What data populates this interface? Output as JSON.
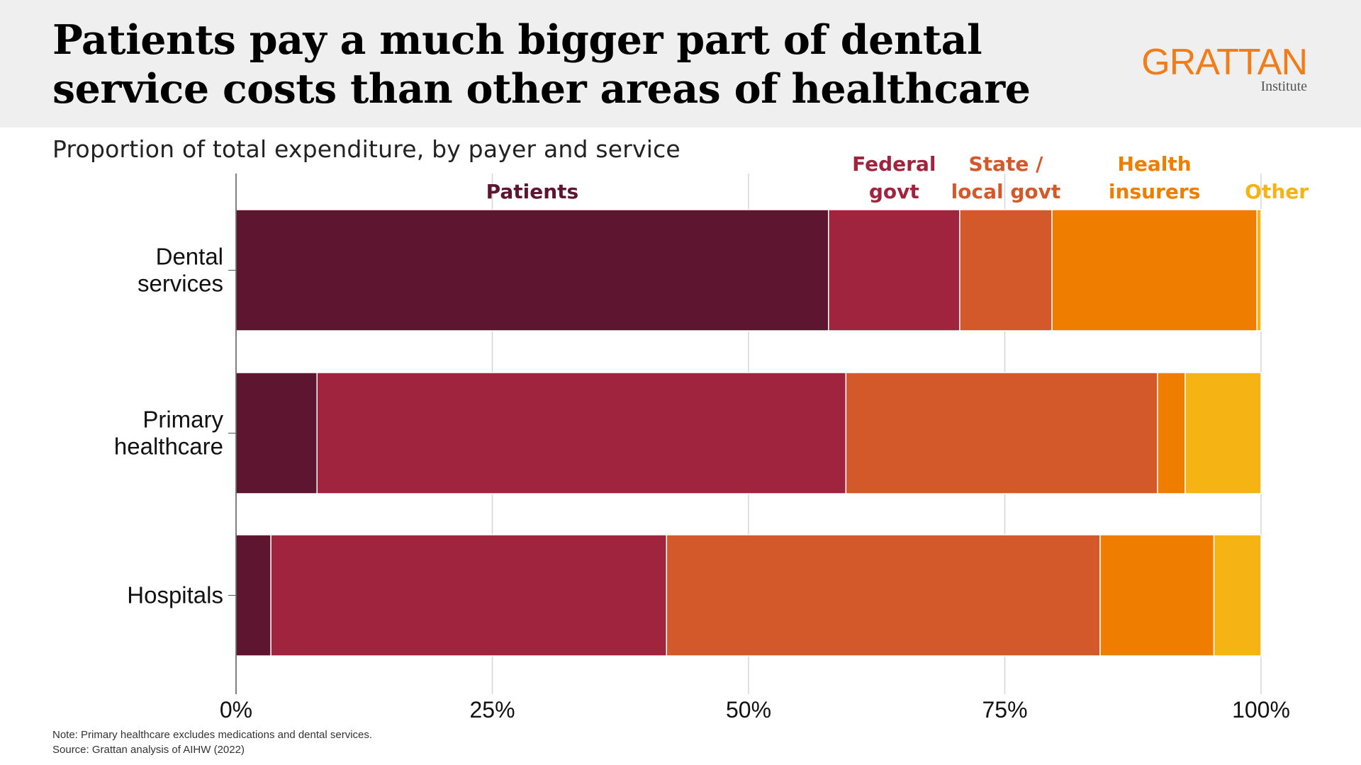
{
  "header": {
    "title": "Patients pay a much bigger part of dental service costs than other areas of healthcare",
    "logo": "GRATTAN",
    "logo_sub": "Institute"
  },
  "subtitle": "Proportion of total expenditure, by payer and service",
  "notes": {
    "note": "Note: Primary healthcare excludes medications and dental services.",
    "source": "Source: Grattan analysis of AIHW (2022)"
  },
  "colors": {
    "patients": "#5e1530",
    "federal": "#a0243d",
    "state": "#d4592a",
    "insurers": "#ef7d00",
    "other": "#f5b314"
  },
  "chart_data": {
    "type": "bar",
    "orientation": "horizontal",
    "stacked": true,
    "categories": [
      [
        "Dental",
        "services"
      ],
      [
        "Primary",
        "healthcare"
      ],
      [
        "Hospitals"
      ]
    ],
    "series": [
      {
        "name": "Patients",
        "label_lines": [
          "Patients"
        ],
        "color": "#5e1530",
        "values": [
          57.8,
          7.9,
          3.4
        ]
      },
      {
        "name": "Federal govt",
        "label_lines": [
          "Federal",
          "govt"
        ],
        "color": "#a0243d",
        "values": [
          12.8,
          51.6,
          38.6
        ]
      },
      {
        "name": "State / local govt",
        "label_lines": [
          "State /",
          "local govt"
        ],
        "color": "#d4592a",
        "values": [
          9.0,
          30.4,
          42.3
        ]
      },
      {
        "name": "Health insurers",
        "label_lines": [
          "Health",
          "insurers"
        ],
        "color": "#ef7d00",
        "values": [
          20.0,
          2.7,
          11.1
        ]
      },
      {
        "name": "Other",
        "label_lines": [
          "Other"
        ],
        "color": "#f5b314",
        "values": [
          0.4,
          7.4,
          4.6
        ]
      }
    ],
    "x_ticks": [
      "0%",
      "25%",
      "50%",
      "75%",
      "100%"
    ],
    "xlim": [
      0,
      100
    ],
    "grid": true,
    "legend": "direct labels above bars"
  }
}
